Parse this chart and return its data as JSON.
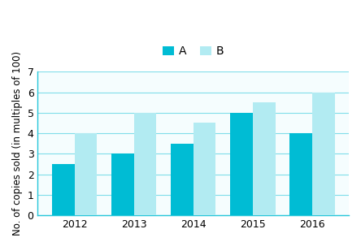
{
  "years": [
    "2012",
    "2013",
    "2014",
    "2015",
    "2016"
  ],
  "A_values": [
    2.5,
    3.0,
    3.5,
    5.0,
    4.0
  ],
  "B_values": [
    4.0,
    5.0,
    4.5,
    5.5,
    6.0
  ],
  "A_color": "#00BCD4",
  "B_color": "#B2EBF2",
  "ylabel": "No. of copies sold (in multiples of 100)",
  "ylim": [
    0,
    7
  ],
  "yticks": [
    0,
    1,
    2,
    3,
    4,
    5,
    6,
    7
  ],
  "legend_labels": [
    "A",
    "B"
  ],
  "bar_width": 0.38,
  "grid_color": "#80DEEA",
  "bg_color": "#FFFFFF",
  "plot_bg_color": "#F5FDFE",
  "spine_color": "#26C6DA",
  "legend_fontsize": 10,
  "axis_label_fontsize": 8.5,
  "tick_fontsize": 9
}
